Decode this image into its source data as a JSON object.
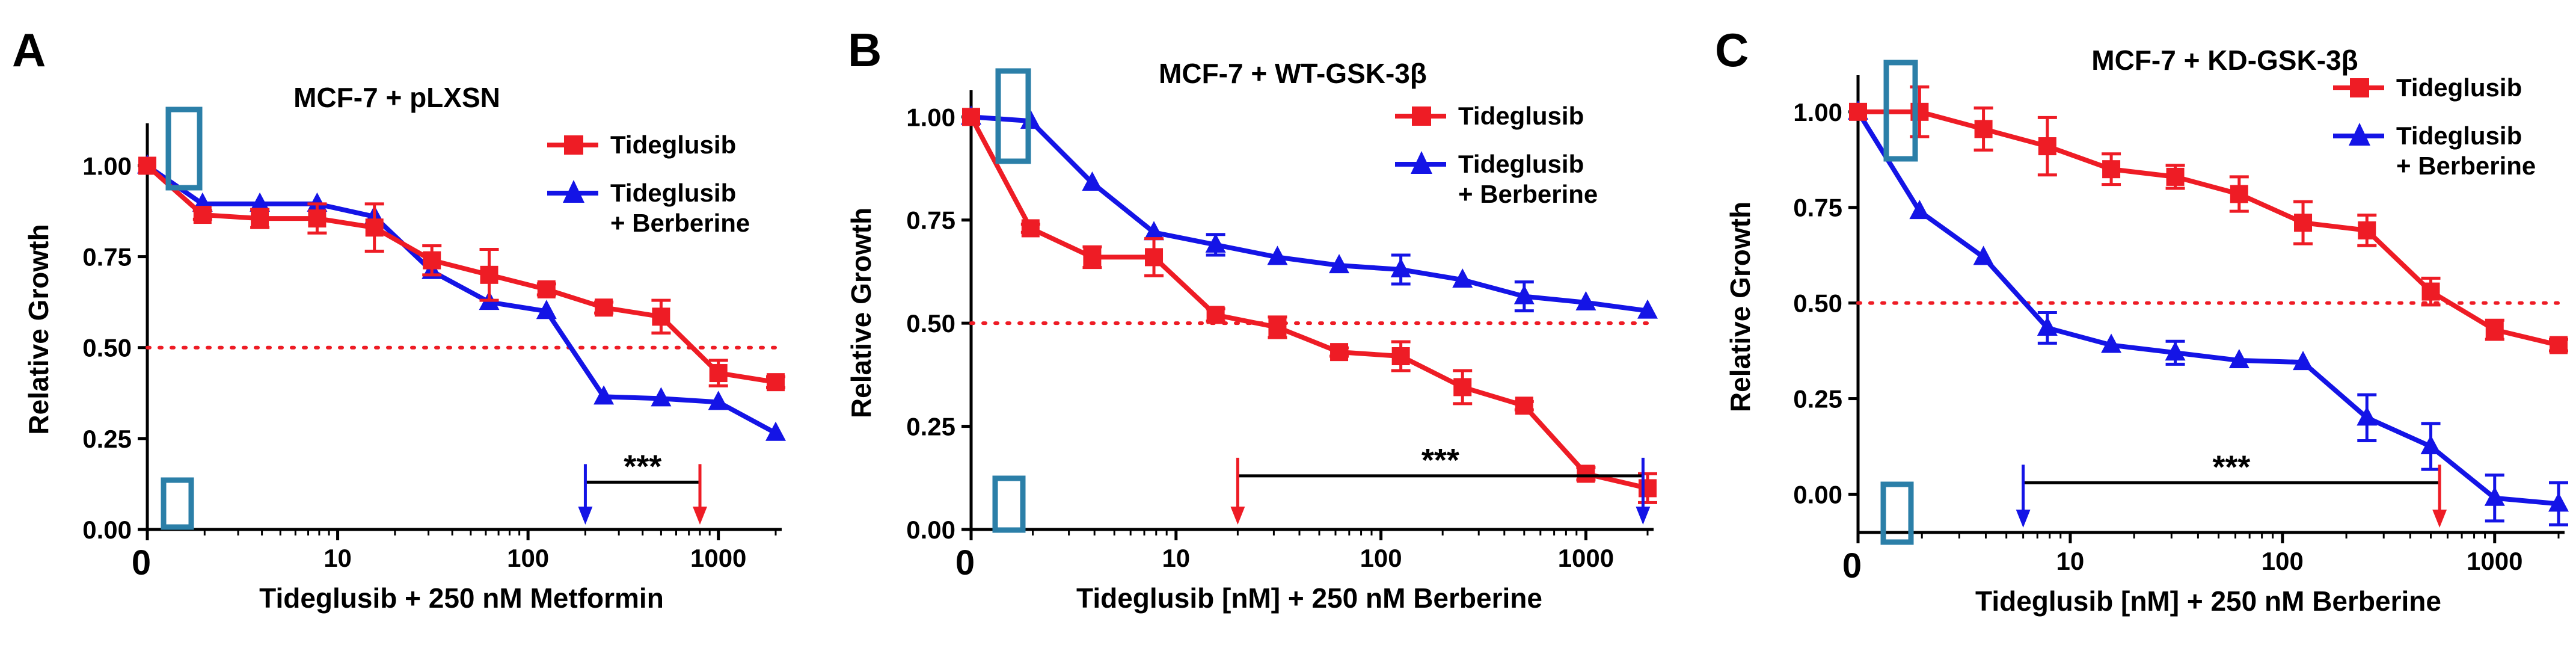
{
  "colors": {
    "series_a": "#ee1c25",
    "series_b": "#1414e6",
    "threshold": "#ee1c25",
    "marker": "#2b7fa8",
    "axis": "#000000"
  },
  "chart_data": [
    {
      "panel": "A",
      "type": "line",
      "title": "MCF-7 + pLXSN",
      "xlabel": "Tideglusib + 250 nM Metformin",
      "ylabel": "Relative Growth",
      "x_scale": "log",
      "xlim": [
        1,
        2000
      ],
      "ylim": [
        0,
        1.1
      ],
      "yticks": [
        {
          "value": 0,
          "label": "0.00"
        },
        {
          "value": 0.25,
          "label": "0.25"
        },
        {
          "value": 0.5,
          "label": "0.50"
        },
        {
          "value": 0.75,
          "label": "0.75"
        },
        {
          "value": 1.0,
          "label": "1.00"
        }
      ],
      "xticks": [
        {
          "value": 10,
          "label": "10"
        },
        {
          "value": 100,
          "label": "100"
        },
        {
          "value": 1000,
          "label": "1000"
        }
      ],
      "zero_label": "0",
      "threshold": 0.5,
      "legend": {
        "position": "top-right",
        "lines": [
          [
            "Tideglusib"
          ],
          [
            "Tideglusib",
            "+ Berberine"
          ]
        ]
      },
      "series": [
        {
          "name": "Tideglusib",
          "marker": "square",
          "x": [
            1,
            1.95,
            3.9,
            7.8,
            15.6,
            31.25,
            62.5,
            125,
            250,
            500,
            1000,
            2000
          ],
          "y": [
            1.0,
            0.865,
            0.855,
            0.855,
            0.83,
            0.74,
            0.7,
            0.66,
            0.61,
            0.585,
            0.43,
            0.405
          ],
          "err": [
            0,
            0.012,
            0.025,
            0.04,
            0.065,
            0.04,
            0.07,
            0.015,
            0.015,
            0.045,
            0.035,
            0.015
          ]
        },
        {
          "name": "Tideglusib + Berberine",
          "marker": "triangle",
          "x": [
            1,
            1.95,
            3.9,
            7.8,
            15.6,
            31.25,
            62.5,
            125,
            250,
            500,
            1000,
            2000
          ],
          "y": [
            1.0,
            0.895,
            0.895,
            0.895,
            0.86,
            0.71,
            0.625,
            0.6,
            0.365,
            0.36,
            0.35,
            0.265
          ],
          "err": [
            0,
            0,
            0,
            0,
            0,
            0,
            0,
            0,
            0,
            0,
            0,
            0
          ]
        }
      ],
      "significance": {
        "label": "***",
        "x_start": 200,
        "x_end": 800,
        "y": 0.13,
        "left_arrow_series": "Tideglusib + Berberine",
        "right_arrow_series": "Tideglusib"
      }
    },
    {
      "panel": "B",
      "type": "line",
      "title": "MCF-7 + WT-GSK-3β",
      "xlabel": "Tideglusib [nM] + 250 nM Berberine",
      "ylabel": "Relative Growth",
      "x_scale": "log",
      "xlim": [
        1,
        2000
      ],
      "ylim": [
        0,
        1.05
      ],
      "yticks": [
        {
          "value": 0,
          "label": "0.00"
        },
        {
          "value": 0.25,
          "label": "0.25"
        },
        {
          "value": 0.5,
          "label": "0.50"
        },
        {
          "value": 0.75,
          "label": "0.75"
        },
        {
          "value": 1.0,
          "label": "1.00"
        }
      ],
      "xticks": [
        {
          "value": 10,
          "label": "10"
        },
        {
          "value": 100,
          "label": "100"
        },
        {
          "value": 1000,
          "label": "1000"
        }
      ],
      "zero_label": "0",
      "threshold": 0.5,
      "legend": {
        "position": "top-right",
        "lines": [
          [
            "Tideglusib"
          ],
          [
            "Tideglusib",
            "+ Berberine"
          ]
        ]
      },
      "series": [
        {
          "name": "Tideglusib",
          "marker": "square",
          "x": [
            1,
            1.95,
            3.9,
            7.8,
            15.6,
            31.25,
            62.5,
            125,
            250,
            500,
            1000,
            2000
          ],
          "y": [
            1.0,
            0.73,
            0.66,
            0.66,
            0.52,
            0.49,
            0.43,
            0.42,
            0.345,
            0.3,
            0.135,
            0.1
          ],
          "err": [
            0,
            0.01,
            0.025,
            0.045,
            0.015,
            0.025,
            0.01,
            0.035,
            0.04,
            0.01,
            0.015,
            0.035
          ]
        },
        {
          "name": "Tideglusib + Berberine",
          "marker": "triangle",
          "x": [
            1,
            1.95,
            3.9,
            7.8,
            15.6,
            31.25,
            62.5,
            125,
            250,
            500,
            1000,
            2000
          ],
          "y": [
            1.0,
            0.99,
            0.84,
            0.72,
            0.69,
            0.66,
            0.64,
            0.63,
            0.605,
            0.565,
            0.55,
            0.53
          ],
          "err": [
            0,
            0,
            0,
            0,
            0.025,
            0,
            0,
            0.035,
            0,
            0.035,
            0,
            0
          ]
        }
      ],
      "significance": {
        "label": "***",
        "x_start": 20,
        "x_end": 1900,
        "y": 0.13,
        "left_arrow_series": "Tideglusib",
        "right_arrow_series": "Tideglusib + Berberine"
      }
    },
    {
      "panel": "C",
      "type": "line",
      "title": "MCF-7 + KD-GSK-3β",
      "xlabel": "Tideglusib [nM] + 250 nM Berberine",
      "ylabel": "Relative Growth",
      "x_scale": "log",
      "xlim": [
        1,
        2000
      ],
      "ylim": [
        -0.1,
        1.08
      ],
      "yticks": [
        {
          "value": 0,
          "label": "0.00"
        },
        {
          "value": 0.25,
          "label": "0.25"
        },
        {
          "value": 0.5,
          "label": "0.50"
        },
        {
          "value": 0.75,
          "label": "0.75"
        },
        {
          "value": 1.0,
          "label": "1.00"
        }
      ],
      "xticks": [
        {
          "value": 10,
          "label": "10"
        },
        {
          "value": 100,
          "label": "100"
        },
        {
          "value": 1000,
          "label": "1000"
        }
      ],
      "zero_label": "0",
      "threshold": 0.5,
      "legend": {
        "position": "top-right",
        "lines": [
          [
            "Tideglusib"
          ],
          [
            "Tideglusib",
            "+ Berberine"
          ]
        ]
      },
      "series": [
        {
          "name": "Tideglusib",
          "marker": "square",
          "x": [
            1,
            1.95,
            3.9,
            7.8,
            15.6,
            31.25,
            62.5,
            125,
            250,
            500,
            1000,
            2000
          ],
          "y": [
            1.0,
            1.0,
            0.955,
            0.91,
            0.85,
            0.83,
            0.785,
            0.71,
            0.69,
            0.53,
            0.43,
            0.39
          ],
          "err": [
            0,
            0.065,
            0.055,
            0.075,
            0.04,
            0.03,
            0.045,
            0.055,
            0.04,
            0.035,
            0.025,
            0.015
          ]
        },
        {
          "name": "Tideglusib + Berberine",
          "marker": "triangle",
          "x": [
            1,
            1.95,
            3.9,
            7.8,
            15.6,
            31.25,
            62.5,
            125,
            250,
            500,
            1000,
            2000
          ],
          "y": [
            1.0,
            0.74,
            0.62,
            0.435,
            0.39,
            0.37,
            0.35,
            0.345,
            0.2,
            0.125,
            -0.01,
            -0.025
          ],
          "err": [
            0,
            0,
            0,
            0.04,
            0,
            0.03,
            0,
            0,
            0.06,
            0.06,
            0.06,
            0.055
          ]
        }
      ],
      "significance": {
        "label": "***",
        "x_start": 6,
        "x_end": 550,
        "y": 0.03,
        "left_arrow_series": "Tideglusib + Berberine",
        "right_arrow_series": "Tideglusib"
      }
    }
  ]
}
